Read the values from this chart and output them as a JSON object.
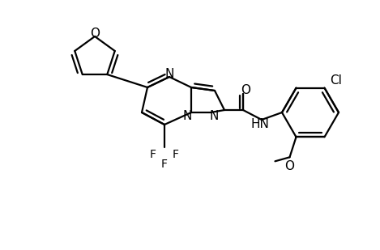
{
  "bg_color": "#ffffff",
  "line_color": "#000000",
  "lw": 1.6,
  "fs": 10,
  "atoms": {
    "comment": "all positions in 460x300 data space"
  }
}
